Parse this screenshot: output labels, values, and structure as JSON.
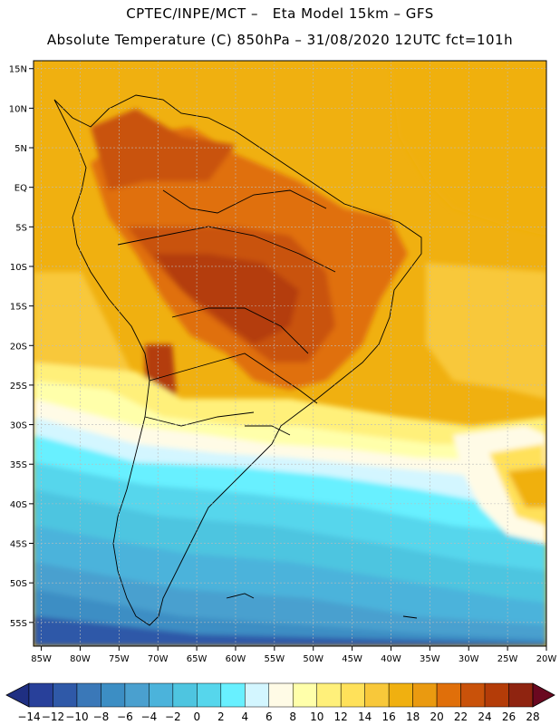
{
  "header": {
    "line1": "CPTEC/INPE/MCT –   Eta Model 15km – GFS",
    "line2": "Absolute Temperature (C) 850hPa – 31/08/2020 12UTC fct=101h"
  },
  "chart_data": {
    "type": "heatmap",
    "title": "Absolute Temperature (C) 850hPa – 31/08/2020 12UTC fct=101h",
    "model": "Eta Model 15km – GFS",
    "source": "CPTEC/INPE/MCT",
    "variable": "Absolute Temperature",
    "units": "C",
    "level": "850hPa",
    "valid": "31/08/2020 12UTC",
    "forecast_hour": "fct=101h",
    "x_range": [
      -86,
      -20
    ],
    "y_range": [
      -58,
      16
    ],
    "x_ticks": [
      -85,
      -80,
      -75,
      -70,
      -65,
      -60,
      -55,
      -50,
      -45,
      -40,
      -35,
      -30,
      -25,
      -20
    ],
    "x_tick_labels": [
      "85W",
      "80W",
      "75W",
      "70W",
      "65W",
      "60W",
      "55W",
      "50W",
      "45W",
      "40W",
      "35W",
      "30W",
      "25W",
      "20W"
    ],
    "y_ticks": [
      15,
      10,
      5,
      0,
      -5,
      -10,
      -15,
      -20,
      -25,
      -30,
      -35,
      -40,
      -45,
      -50,
      -55
    ],
    "y_tick_labels": [
      "15N",
      "10N",
      "5N",
      "EQ",
      "5S",
      "10S",
      "15S",
      "20S",
      "25S",
      "30S",
      "35S",
      "40S",
      "45S",
      "50S",
      "55S"
    ],
    "grid": true,
    "colorbar": {
      "levels": [
        -14,
        -12,
        -10,
        -8,
        -6,
        -4,
        -2,
        0,
        2,
        4,
        6,
        8,
        10,
        12,
        14,
        16,
        18,
        20,
        22,
        24,
        26,
        28
      ],
      "labels": [
        "-14",
        "-12",
        "-10",
        "-8",
        "-6",
        "-4",
        "-2",
        "0",
        "2",
        "4",
        "6",
        "8",
        "10",
        "12",
        "14",
        "16",
        "18",
        "20",
        "22",
        "24",
        "26",
        "28"
      ],
      "colors": [
        "#28409a",
        "#2f59a8",
        "#3a78b8",
        "#3c8ec4",
        "#4aa0cf",
        "#4bb3db",
        "#4ec5e0",
        "#56d6ec",
        "#68f0ff",
        "#d3f6ff",
        "#fffbe6",
        "#ffffaa",
        "#fff07a",
        "#ffe15a",
        "#f8c83a",
        "#f0b010",
        "#ea9a10",
        "#e06f0a",
        "#c9520a",
        "#b43c08",
        "#8f2410"
      ],
      "under_color": "#1f2f82",
      "over_color": "#6a0820"
    }
  }
}
